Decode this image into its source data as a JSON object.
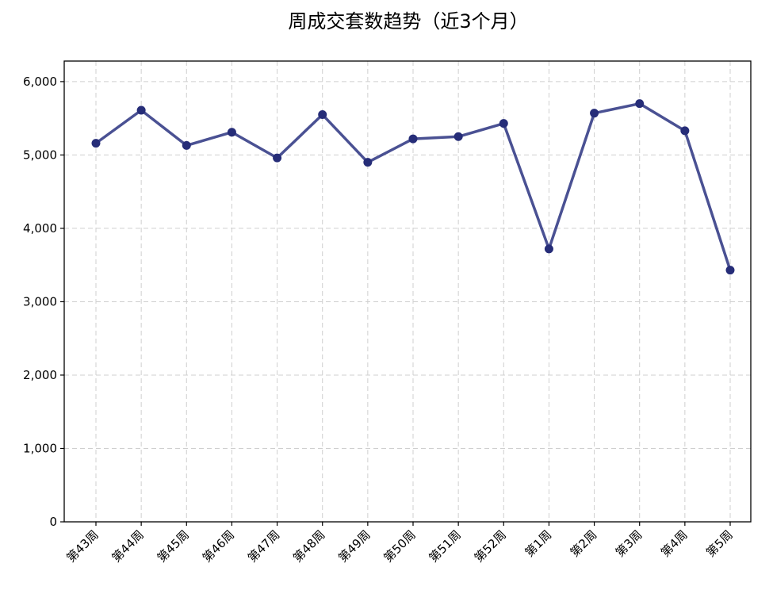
{
  "chart_data": {
    "type": "line",
    "title": "周成交套数趋势（近3个月）",
    "xlabel": "",
    "ylabel": "",
    "categories": [
      "第43周",
      "第44周",
      "第45周",
      "第46周",
      "第47周",
      "第48周",
      "第49周",
      "第50周",
      "第51周",
      "第52周",
      "第1周",
      "第2周",
      "第3周",
      "第4周",
      "第5周"
    ],
    "series": [
      {
        "values": [
          5160,
          5610,
          5130,
          5310,
          4960,
          5550,
          4900,
          5220,
          5250,
          5430,
          3720,
          5570,
          5700,
          5330,
          3430
        ],
        "color": "#3b428a"
      }
    ],
    "ylim": [
      0,
      6280
    ],
    "yticks": [
      0,
      1000,
      2000,
      3000,
      4000,
      5000,
      6000
    ],
    "ytick_labels": [
      "0",
      "1,000",
      "2,000",
      "3,000",
      "4,000",
      "5,000",
      "6,000"
    ],
    "grid": true,
    "legend": "none"
  }
}
